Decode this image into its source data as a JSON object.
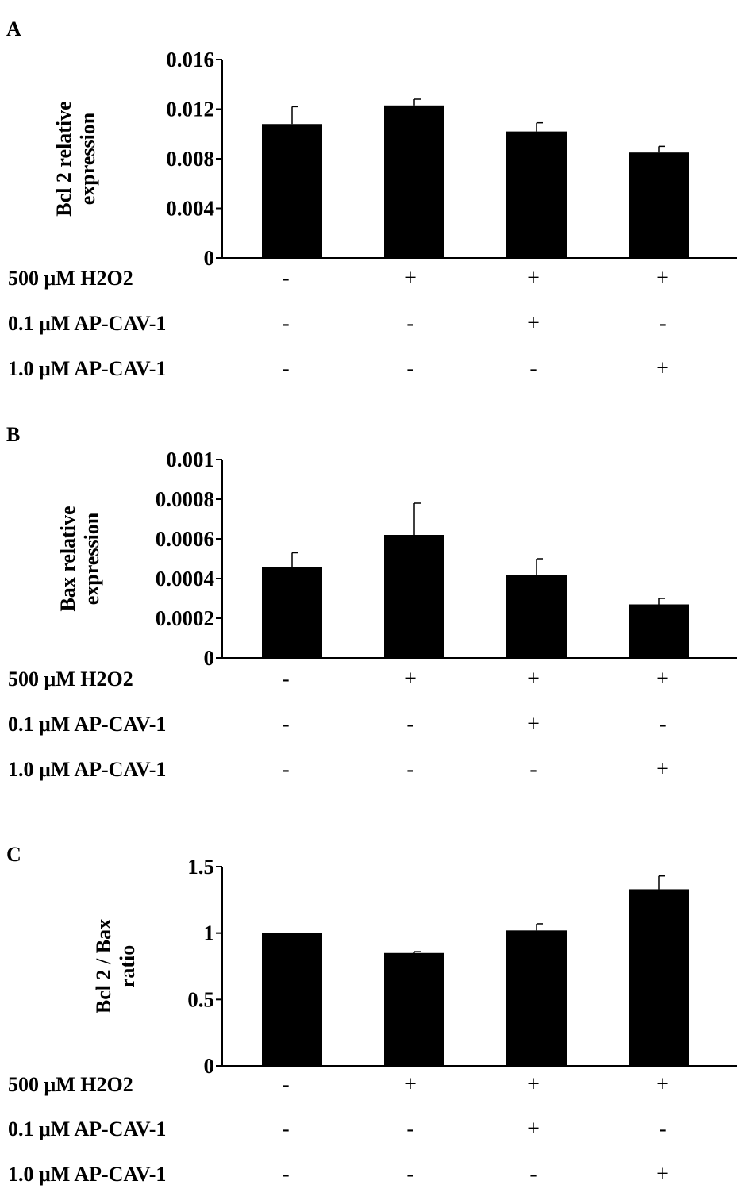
{
  "chart_data": [
    {
      "type": "bar",
      "panel": "A",
      "ylabel": [
        "Bcl 2 relative",
        "expression"
      ],
      "ylim": [
        0,
        0.016
      ],
      "yticks": [
        "0",
        "0.004",
        "0.008",
        "0.012",
        "0.016"
      ],
      "values": [
        0.0108,
        0.0123,
        0.0102,
        0.0085
      ],
      "errors": [
        0.0014,
        0.0005,
        0.0007,
        0.0005
      ],
      "color": "#000000",
      "conditions": [
        {
          "label": "500 μM H2O2",
          "signs": [
            "-",
            "+",
            "+",
            "+"
          ]
        },
        {
          "label": "0.1 μM AP-CAV-1",
          "signs": [
            "-",
            "-",
            "+",
            "-"
          ]
        },
        {
          "label": "1.0 μM AP-CAV-1",
          "signs": [
            "-",
            "-",
            "-",
            "+"
          ]
        }
      ]
    },
    {
      "type": "bar",
      "panel": "B",
      "ylabel": [
        "Bax relative",
        "expression"
      ],
      "ylim": [
        0,
        0.001
      ],
      "yticks": [
        "0",
        "0.0002",
        "0.0004",
        "0.0006",
        "0.0008",
        "0.001"
      ],
      "values": [
        0.00046,
        0.00062,
        0.00042,
        0.00027
      ],
      "errors": [
        7e-05,
        0.00016,
        8e-05,
        3e-05
      ],
      "color": "#000000",
      "conditions": [
        {
          "label": "500 μM H2O2",
          "signs": [
            "-",
            "+",
            "+",
            "+"
          ]
        },
        {
          "label": "0.1 μM AP-CAV-1",
          "signs": [
            "-",
            "-",
            "+",
            "-"
          ]
        },
        {
          "label": "1.0 μM AP-CAV-1",
          "signs": [
            "-",
            "-",
            "-",
            "+"
          ]
        }
      ]
    },
    {
      "type": "bar",
      "panel": "C",
      "ylabel": [
        "Bcl 2 / Bax",
        "ratio"
      ],
      "ylim": [
        0,
        1.5
      ],
      "yticks": [
        "0",
        "0.5",
        "1",
        "1.5"
      ],
      "values": [
        1.0,
        0.85,
        1.02,
        1.33
      ],
      "errors": [
        0.0,
        0.01,
        0.05,
        0.1
      ],
      "color": "#000000",
      "conditions": [
        {
          "label": "500 μM H2O2",
          "signs": [
            "-",
            "+",
            "+",
            "+"
          ]
        },
        {
          "label": "0.1 μM AP-CAV-1",
          "signs": [
            "-",
            "-",
            "+",
            "-"
          ]
        },
        {
          "label": "1.0 μM AP-CAV-1",
          "signs": [
            "-",
            "-",
            "-",
            "+"
          ]
        }
      ]
    }
  ]
}
